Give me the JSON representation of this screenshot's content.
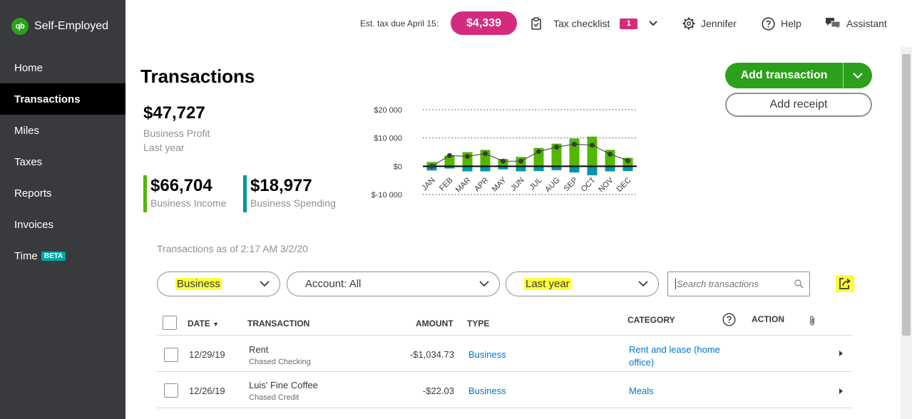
{
  "brand": {
    "logo_text": "qb",
    "name": "Self-Employed"
  },
  "sidebar": {
    "items": [
      {
        "label": "Home"
      },
      {
        "label": "Transactions",
        "active": true
      },
      {
        "label": "Miles"
      },
      {
        "label": "Taxes"
      },
      {
        "label": "Reports"
      },
      {
        "label": "Invoices"
      },
      {
        "label": "Time",
        "badge": "BETA"
      }
    ]
  },
  "topbar": {
    "est_tax_label": "Est. tax due April 15:",
    "est_tax_amount": "$4,339",
    "checklist_label": "Tax checklist",
    "checklist_count": "1",
    "user_label": "Jennifer",
    "help_label": "Help",
    "assistant_label": "Assistant"
  },
  "page": {
    "title": "Transactions"
  },
  "summary": {
    "profit_amount": "$47,727",
    "profit_label": "Business Profit",
    "profit_period": "Last year",
    "income_amount": "$66,704",
    "income_label": "Business Income",
    "spending_amount": "$18,977",
    "spending_label": "Business Spending"
  },
  "actions": {
    "add_transaction": "Add transaction",
    "add_receipt": "Add receipt"
  },
  "chart_data": {
    "type": "bar",
    "categories": [
      "JAN",
      "FEB",
      "MAR",
      "APR",
      "MAY",
      "JUN",
      "JUL",
      "AUG",
      "SEP",
      "OCT",
      "NOV",
      "DEC"
    ],
    "series": [
      {
        "values": [
          1500,
          3800,
          5000,
          5800,
          2600,
          3300,
          6500,
          8000,
          9800,
          10500,
          5800,
          3000
        ]
      },
      {
        "values": [
          -1500,
          -800,
          -1800,
          -1800,
          -1100,
          -1800,
          -1700,
          -1400,
          -2200,
          -3200,
          -1800,
          -1700
        ]
      },
      {
        "values": [
          0,
          3800,
          3500,
          4500,
          1800,
          1800,
          5200,
          6800,
          7800,
          7500,
          4300,
          2000
        ]
      }
    ],
    "y_ticks": [
      "$20 000",
      "$10 000",
      "$0",
      "$-10 000"
    ],
    "ylim": [
      -10000,
      20000
    ],
    "colors": {
      "positive": "#53b700",
      "negative": "#0097a7",
      "line": "#393a3d"
    }
  },
  "list": {
    "as_of": "Transactions as of 2:17 AM 3/2/20",
    "filters": {
      "type": "Business",
      "account": "Account: All",
      "period": "Last year"
    },
    "search_placeholder": "Search transactions",
    "columns": {
      "date": "DATE",
      "transaction": "TRANSACTION",
      "amount": "AMOUNT",
      "type": "TYPE",
      "category": "CATEGORY",
      "action": "ACTION"
    },
    "rows": [
      {
        "date": "12/29/19",
        "name": "Rent",
        "account": "Chased Checking",
        "amount": "-$1,034.73",
        "type": "Business",
        "category": "Rent and lease (home office)"
      },
      {
        "date": "12/26/19",
        "name": "Luis' Fine Coffee",
        "account": "Chased Credit",
        "amount": "-$22.03",
        "type": "Business",
        "category": "Meals"
      }
    ]
  }
}
